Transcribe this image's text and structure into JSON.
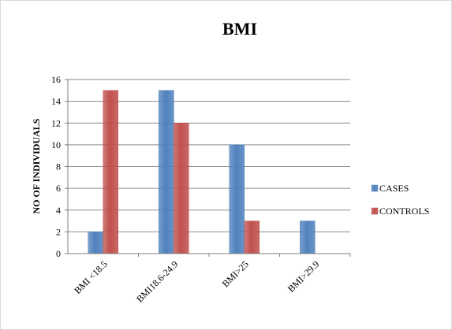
{
  "chart_data": {
    "type": "bar",
    "title": "BMI",
    "xlabel": "",
    "ylabel": "NO OF INDIVIDUALS",
    "categories": [
      "BMI <18.5",
      "BMI18.6-24.9",
      "BMI>25",
      "BMI>29.9"
    ],
    "series": [
      {
        "name": "CASES",
        "values": [
          2,
          15,
          10,
          3
        ],
        "color": "#4f81bd"
      },
      {
        "name": "CONTROLS",
        "values": [
          15,
          12,
          3,
          0
        ],
        "color": "#c0504d"
      }
    ],
    "ylim": [
      0,
      16
    ],
    "yticks": [
      0,
      2,
      4,
      6,
      8,
      10,
      12,
      14,
      16
    ],
    "grid": true,
    "legend_position": "right"
  }
}
